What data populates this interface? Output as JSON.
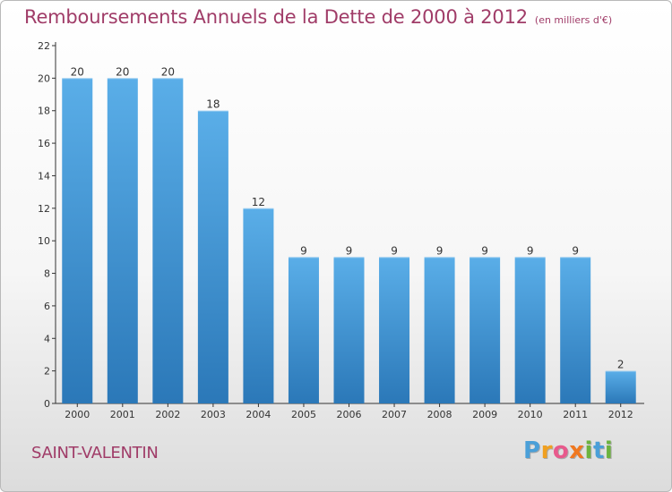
{
  "title": "Remboursements Annuels de la Dette de 2000 à 2012",
  "unit": "(en milliers d'€)",
  "commune": "SAINT-VALENTIN",
  "logo": {
    "text": "Proxiti",
    "letters": [
      {
        "ch": "P",
        "color": "#4a9fd8"
      },
      {
        "ch": "r",
        "color": "#f0a020"
      },
      {
        "ch": "o",
        "color": "#e85a8c"
      },
      {
        "ch": "x",
        "color": "#f07820"
      },
      {
        "ch": "i",
        "color": "#6cb33f"
      },
      {
        "ch": "t",
        "color": "#4a9fd8"
      },
      {
        "ch": "i",
        "color": "#6cb33f"
      }
    ]
  },
  "colors": {
    "bar_top": "#5aaee8",
    "bar_bottom": "#2b78b8",
    "title": "#a03c68"
  },
  "chart_data": {
    "type": "bar",
    "categories": [
      "2000",
      "2001",
      "2002",
      "2003",
      "2004",
      "2005",
      "2006",
      "2007",
      "2008",
      "2009",
      "2010",
      "2011",
      "2012"
    ],
    "values": [
      20,
      20,
      20,
      18,
      12,
      9,
      9,
      9,
      9,
      9,
      9,
      9,
      2
    ],
    "ylim": [
      0,
      22
    ],
    "yticks": [
      0,
      2,
      4,
      6,
      8,
      10,
      12,
      14,
      16,
      18,
      20,
      22
    ],
    "grid": false,
    "legend": "none"
  }
}
